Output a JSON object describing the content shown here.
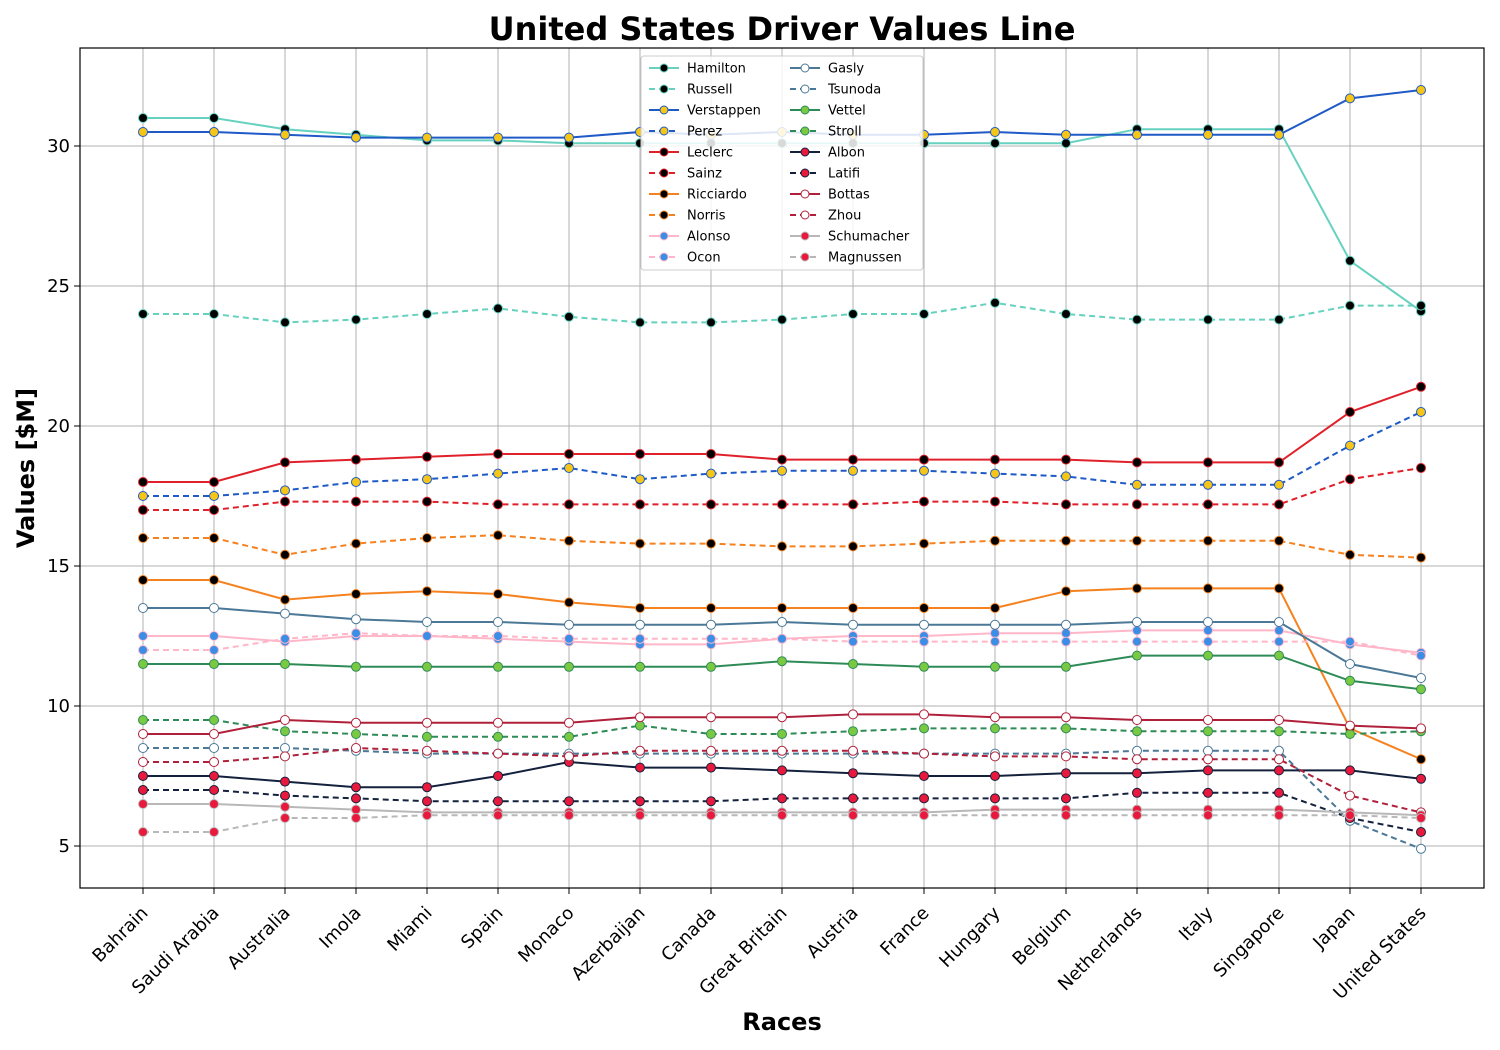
{
  "chart_data": {
    "type": "line",
    "title": "United States Driver Values Line",
    "xlabel": "Races",
    "ylabel": "Values [$M]",
    "ylim": [
      3.5,
      33.5
    ],
    "yticks": [
      5,
      10,
      15,
      20,
      25,
      30
    ],
    "grid": true,
    "legend_position": "top-center",
    "legend_columns": 2,
    "categories": [
      "Bahrain",
      "Saudi Arabia",
      "Australia",
      "Imola",
      "Miami",
      "Spain",
      "Monaco",
      "Azerbaijan",
      "Canada",
      "Great Britain",
      "Austria",
      "France",
      "Hungary",
      "Belgium",
      "Netherlands",
      "Italy",
      "Singapore",
      "Japan",
      "United States"
    ],
    "series": [
      {
        "name": "Hamilton",
        "color": "#66d1bf",
        "dash": false,
        "marker_face": "#000000",
        "marker_edge": "#66d1bf",
        "values": [
          31.0,
          31.0,
          30.6,
          30.4,
          30.2,
          30.2,
          30.1,
          30.1,
          30.1,
          30.1,
          30.1,
          30.1,
          30.1,
          30.1,
          30.6,
          30.6,
          30.6,
          25.9,
          24.1
        ]
      },
      {
        "name": "Russell",
        "color": "#66d1bf",
        "dash": true,
        "marker_face": "#000000",
        "marker_edge": "#66d1bf",
        "values": [
          24.0,
          24.0,
          23.7,
          23.8,
          24.0,
          24.2,
          23.9,
          23.7,
          23.7,
          23.8,
          24.0,
          24.0,
          24.4,
          24.0,
          23.8,
          23.8,
          23.8,
          24.3,
          24.3
        ]
      },
      {
        "name": "Verstappen",
        "color": "#1f5ac6",
        "dash": false,
        "marker_face": "#f5c518",
        "marker_edge": "#1f5ac6",
        "values": [
          30.5,
          30.5,
          30.4,
          30.3,
          30.3,
          30.3,
          30.3,
          30.5,
          30.4,
          30.5,
          30.4,
          30.4,
          30.5,
          30.4,
          30.4,
          30.4,
          30.4,
          31.7,
          32.0
        ]
      },
      {
        "name": "Perez",
        "color": "#1f5ac6",
        "dash": true,
        "marker_face": "#f5c518",
        "marker_edge": "#1f5ac6",
        "values": [
          17.5,
          17.5,
          17.7,
          18.0,
          18.1,
          18.3,
          18.5,
          18.1,
          18.3,
          18.4,
          18.4,
          18.4,
          18.3,
          18.2,
          17.9,
          17.9,
          17.9,
          19.3,
          20.5
        ]
      },
      {
        "name": "Leclerc",
        "color": "#e0202a",
        "dash": false,
        "marker_face": "#000000",
        "marker_edge": "#e0202a",
        "values": [
          18.0,
          18.0,
          18.7,
          18.8,
          18.9,
          19.0,
          19.0,
          19.0,
          19.0,
          18.8,
          18.8,
          18.8,
          18.8,
          18.8,
          18.7,
          18.7,
          18.7,
          20.5,
          21.4
        ]
      },
      {
        "name": "Sainz",
        "color": "#e0202a",
        "dash": true,
        "marker_face": "#000000",
        "marker_edge": "#e0202a",
        "values": [
          17.0,
          17.0,
          17.3,
          17.3,
          17.3,
          17.2,
          17.2,
          17.2,
          17.2,
          17.2,
          17.2,
          17.3,
          17.3,
          17.2,
          17.2,
          17.2,
          17.2,
          18.1,
          18.5
        ]
      },
      {
        "name": "Ricciardo",
        "color": "#f5821f",
        "dash": false,
        "marker_face": "#000000",
        "marker_edge": "#f5821f",
        "values": [
          14.5,
          14.5,
          13.8,
          14.0,
          14.1,
          14.0,
          13.7,
          13.5,
          13.5,
          13.5,
          13.5,
          13.5,
          13.5,
          14.1,
          14.2,
          14.2,
          14.2,
          9.2,
          8.1
        ]
      },
      {
        "name": "Norris",
        "color": "#f5821f",
        "dash": true,
        "marker_face": "#000000",
        "marker_edge": "#f5821f",
        "values": [
          16.0,
          16.0,
          15.4,
          15.8,
          16.0,
          16.1,
          15.9,
          15.8,
          15.8,
          15.7,
          15.7,
          15.8,
          15.9,
          15.9,
          15.9,
          15.9,
          15.9,
          15.4,
          15.3
        ]
      },
      {
        "name": "Alonso",
        "color": "#ffb6c9",
        "dash": false,
        "marker_face": "#3a8ee6",
        "marker_edge": "#ffb6c9",
        "values": [
          12.5,
          12.5,
          12.3,
          12.5,
          12.5,
          12.4,
          12.3,
          12.2,
          12.2,
          12.4,
          12.5,
          12.5,
          12.6,
          12.6,
          12.7,
          12.7,
          12.7,
          12.2,
          11.9
        ]
      },
      {
        "name": "Ocon",
        "color": "#ffb6c9",
        "dash": true,
        "marker_face": "#3a8ee6",
        "marker_edge": "#ffb6c9",
        "values": [
          12.0,
          12.0,
          12.4,
          12.6,
          12.5,
          12.5,
          12.4,
          12.4,
          12.4,
          12.4,
          12.3,
          12.3,
          12.3,
          12.3,
          12.3,
          12.3,
          12.3,
          12.3,
          11.8
        ]
      },
      {
        "name": "Gasly",
        "color": "#4a7896",
        "dash": false,
        "marker_face": "#ffffff",
        "marker_edge": "#4a7896",
        "values": [
          13.5,
          13.5,
          13.3,
          13.1,
          13.0,
          13.0,
          12.9,
          12.9,
          12.9,
          13.0,
          12.9,
          12.9,
          12.9,
          12.9,
          13.0,
          13.0,
          13.0,
          11.5,
          11.0
        ]
      },
      {
        "name": "Tsunoda",
        "color": "#4a7896",
        "dash": true,
        "marker_face": "#ffffff",
        "marker_edge": "#4a7896",
        "values": [
          8.5,
          8.5,
          8.5,
          8.4,
          8.3,
          8.3,
          8.3,
          8.3,
          8.3,
          8.3,
          8.3,
          8.3,
          8.3,
          8.3,
          8.4,
          8.4,
          8.4,
          5.9,
          4.9
        ]
      },
      {
        "name": "Vettel",
        "color": "#2e8b57",
        "dash": false,
        "marker_face": "#7ac943",
        "marker_edge": "#2e8b57",
        "values": [
          11.5,
          11.5,
          11.5,
          11.4,
          11.4,
          11.4,
          11.4,
          11.4,
          11.4,
          11.6,
          11.5,
          11.4,
          11.4,
          11.4,
          11.8,
          11.8,
          11.8,
          10.9,
          10.6
        ]
      },
      {
        "name": "Stroll",
        "color": "#2e8b57",
        "dash": true,
        "marker_face": "#7ac943",
        "marker_edge": "#2e8b57",
        "values": [
          9.5,
          9.5,
          9.1,
          9.0,
          8.9,
          8.9,
          8.9,
          9.3,
          9.0,
          9.0,
          9.1,
          9.2,
          9.2,
          9.2,
          9.1,
          9.1,
          9.1,
          9.0,
          9.1
        ]
      },
      {
        "name": "Albon",
        "color": "#14213d",
        "dash": false,
        "marker_face": "#e8193c",
        "marker_edge": "#14213d",
        "values": [
          7.5,
          7.5,
          7.3,
          7.1,
          7.1,
          7.5,
          8.0,
          7.8,
          7.8,
          7.7,
          7.6,
          7.5,
          7.5,
          7.6,
          7.6,
          7.7,
          7.7,
          7.7,
          7.4
        ]
      },
      {
        "name": "Latifi",
        "color": "#14213d",
        "dash": true,
        "marker_face": "#e8193c",
        "marker_edge": "#14213d",
        "values": [
          7.0,
          7.0,
          6.8,
          6.7,
          6.6,
          6.6,
          6.6,
          6.6,
          6.6,
          6.7,
          6.7,
          6.7,
          6.7,
          6.7,
          6.9,
          6.9,
          6.9,
          6.0,
          5.5
        ]
      },
      {
        "name": "Bottas",
        "color": "#b0203a",
        "dash": false,
        "marker_face": "#ffffff",
        "marker_edge": "#b0203a",
        "values": [
          9.0,
          9.0,
          9.5,
          9.4,
          9.4,
          9.4,
          9.4,
          9.6,
          9.6,
          9.6,
          9.7,
          9.7,
          9.6,
          9.6,
          9.5,
          9.5,
          9.5,
          9.3,
          9.2
        ]
      },
      {
        "name": "Zhou",
        "color": "#b0203a",
        "dash": true,
        "marker_face": "#ffffff",
        "marker_edge": "#b0203a",
        "values": [
          8.0,
          8.0,
          8.2,
          8.5,
          8.4,
          8.3,
          8.2,
          8.4,
          8.4,
          8.4,
          8.4,
          8.3,
          8.2,
          8.2,
          8.1,
          8.1,
          8.1,
          6.8,
          6.2
        ]
      },
      {
        "name": "Schumacher",
        "color": "#b8b8b8",
        "dash": false,
        "marker_face": "#e8193c",
        "marker_edge": "#b8b8b8",
        "values": [
          6.5,
          6.5,
          6.4,
          6.3,
          6.2,
          6.2,
          6.2,
          6.2,
          6.2,
          6.2,
          6.2,
          6.2,
          6.3,
          6.3,
          6.3,
          6.3,
          6.3,
          6.2,
          6.1
        ]
      },
      {
        "name": "Magnussen",
        "color": "#b8b8b8",
        "dash": true,
        "marker_face": "#e8193c",
        "marker_edge": "#b8b8b8",
        "values": [
          5.5,
          5.5,
          6.0,
          6.0,
          6.1,
          6.1,
          6.1,
          6.1,
          6.1,
          6.1,
          6.1,
          6.1,
          6.1,
          6.1,
          6.1,
          6.1,
          6.1,
          6.1,
          6.0
        ]
      }
    ]
  }
}
